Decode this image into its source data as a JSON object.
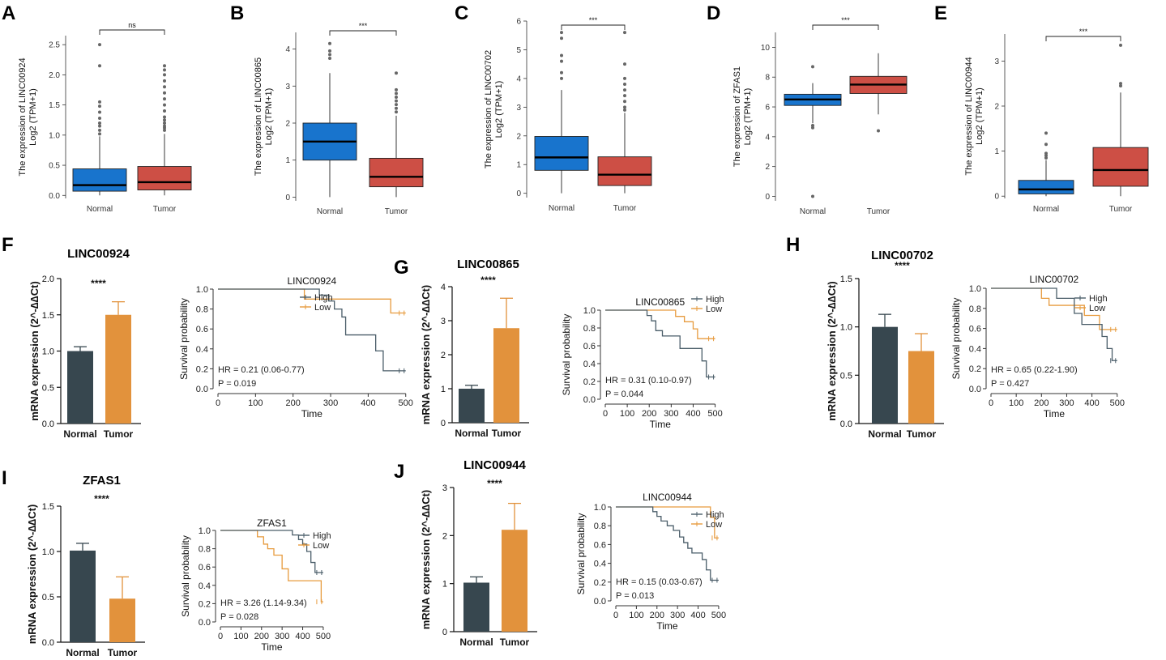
{
  "colors": {
    "box_normal": "#1874cd",
    "box_tumor": "#cd4f45",
    "bar_normal": "#37474f",
    "bar_tumor": "#e2923c",
    "km_high": "#4a5d69",
    "km_low": "#e79b3e"
  },
  "chart_data": [
    {
      "panel": "A",
      "type": "boxplot",
      "gene": "LINC00924",
      "ylabel_top": "The expression of LINC00924",
      "ylabel_bottom": "Log2 (TPM+1)",
      "categories": [
        "Normal",
        "Tumor"
      ],
      "yticks": [
        "0.0",
        "0.5",
        "1.0",
        "1.5",
        "2.0",
        "2.5"
      ],
      "ylim": [
        -0.05,
        2.65
      ],
      "significance": "ns",
      "boxes": [
        {
          "q1": 0.07,
          "median": 0.17,
          "q3": 0.44,
          "whisker_low": 0.0,
          "whisker_high": 0.98,
          "outliers": [
            1.02,
            1.08,
            1.15,
            1.2,
            1.28,
            1.38,
            1.48,
            1.55,
            2.15,
            2.5
          ]
        },
        {
          "q1": 0.09,
          "median": 0.22,
          "q3": 0.48,
          "whisker_low": 0.0,
          "whisker_high": 1.02,
          "outliers": [
            1.08,
            1.12,
            1.15,
            1.2,
            1.25,
            1.3,
            1.4,
            1.5,
            1.6,
            1.7,
            1.8,
            1.9,
            2.0,
            2.08,
            2.15
          ]
        }
      ]
    },
    {
      "panel": "B",
      "type": "boxplot",
      "gene": "LINC00865",
      "ylabel_top": "The expression of LINC00865",
      "ylabel_bottom": "Log2 (TPM+1)",
      "categories": [
        "Normal",
        "Tumor"
      ],
      "yticks": [
        "0",
        "1",
        "2",
        "3",
        "4"
      ],
      "ylim": [
        -0.1,
        4.45
      ],
      "significance": "***",
      "boxes": [
        {
          "q1": 1.0,
          "median": 1.5,
          "q3": 2.0,
          "whisker_low": 0.0,
          "whisker_high": 3.35,
          "outliers": [
            3.75,
            3.85,
            3.95,
            4.15
          ]
        },
        {
          "q1": 0.28,
          "median": 0.55,
          "q3": 1.05,
          "whisker_low": 0.0,
          "whisker_high": 2.2,
          "outliers": [
            2.3,
            2.4,
            2.5,
            2.6,
            2.7,
            2.8,
            2.9,
            3.35
          ]
        }
      ]
    },
    {
      "panel": "C",
      "type": "boxplot",
      "gene": "LINC00702",
      "ylabel_top": "The expression of LINC00702",
      "ylabel_bottom": "Log2 (TPM+1)",
      "categories": [
        "Normal",
        "Tumor"
      ],
      "yticks": [
        "0",
        "1",
        "2",
        "3",
        "4",
        "5",
        "6"
      ],
      "ylim": [
        -0.15,
        6.0
      ],
      "significance": "***",
      "boxes": [
        {
          "q1": 0.8,
          "median": 1.25,
          "q3": 1.98,
          "whisker_low": 0.0,
          "whisker_high": 3.6,
          "outliers": [
            4.0,
            4.2,
            4.6,
            4.8,
            5.4,
            5.6
          ]
        },
        {
          "q1": 0.27,
          "median": 0.65,
          "q3": 1.27,
          "whisker_low": 0.0,
          "whisker_high": 2.8,
          "outliers": [
            2.9,
            3.0,
            3.2,
            3.4,
            3.6,
            3.8,
            4.0,
            4.5,
            5.6
          ]
        }
      ]
    },
    {
      "panel": "D",
      "type": "boxplot",
      "gene": "ZFAS1",
      "ylabel_top": "The expression of ZFAS1",
      "ylabel_bottom": "Log2 (TPM+1)",
      "categories": [
        "Normal",
        "Tumor"
      ],
      "yticks": [
        "0",
        "2",
        "4",
        "6",
        "8",
        "10"
      ],
      "ylim": [
        -0.3,
        11.0
      ],
      "significance": "***",
      "boxes": [
        {
          "q1": 6.1,
          "median": 6.5,
          "q3": 6.85,
          "whisker_low": 4.9,
          "whisker_high": 7.6,
          "outliers": [
            0.0,
            4.6,
            4.75,
            8.7
          ]
        },
        {
          "q1": 6.9,
          "median": 7.5,
          "q3": 8.05,
          "whisker_low": 5.5,
          "whisker_high": 9.6,
          "outliers": [
            4.4
          ]
        }
      ]
    },
    {
      "panel": "E",
      "type": "boxplot",
      "gene": "LINC00944",
      "ylabel_top": "The expression of LINC00944",
      "ylabel_bottom": "Log2 (TPM+1)",
      "categories": [
        "Normal",
        "Tumor"
      ],
      "yticks": [
        "0",
        "1",
        "2",
        "3"
      ],
      "ylim": [
        -0.05,
        3.6
      ],
      "significance": "***",
      "boxes": [
        {
          "q1": 0.05,
          "median": 0.15,
          "q3": 0.35,
          "whisker_low": 0.0,
          "whisker_high": 0.8,
          "outliers": [
            0.85,
            0.9,
            0.95,
            1.15,
            1.4
          ]
        },
        {
          "q1": 0.22,
          "median": 0.58,
          "q3": 1.08,
          "whisker_low": 0.0,
          "whisker_high": 2.3,
          "outliers": [
            2.45,
            2.5,
            3.35
          ]
        }
      ]
    },
    {
      "panel": "F",
      "type": "bar",
      "title": "LINC00924",
      "ylabel": "mRNA expression (2^-∆∆Ct)",
      "categories": [
        "Normal",
        "Tumor"
      ],
      "values": [
        1.0,
        1.5
      ],
      "errors": [
        0.06,
        0.18
      ],
      "yticks": [
        "0.0",
        "0.5",
        "1.0",
        "1.5",
        "2.0"
      ],
      "ylim": [
        0,
        2.0
      ],
      "significance": "****"
    },
    {
      "panel": "G",
      "type": "bar",
      "title": "LINC00865",
      "ylabel": "mRNA expression (2^-∆∆Ct)",
      "categories": [
        "Normal",
        "Tumor"
      ],
      "values": [
        1.0,
        2.78
      ],
      "errors": [
        0.1,
        0.88
      ],
      "yticks": [
        "0",
        "1",
        "2",
        "3",
        "4"
      ],
      "ylim": [
        0,
        4.0
      ],
      "significance": "****"
    },
    {
      "panel": "H",
      "type": "bar",
      "title": "LINC00702",
      "ylabel": "mRNA expression (2^-∆∆Ct)",
      "categories": [
        "Normal",
        "Tumor"
      ],
      "values": [
        1.0,
        0.75
      ],
      "errors": [
        0.13,
        0.18
      ],
      "yticks": [
        "0.0",
        "0.5",
        "1.0",
        "1.5"
      ],
      "ylim": [
        0,
        1.5
      ],
      "significance": "****"
    },
    {
      "panel": "I",
      "type": "bar",
      "title": "ZFAS1",
      "ylabel": "mRNA expression (2^-∆∆Ct)",
      "categories": [
        "Normal",
        "Tumor"
      ],
      "values": [
        1.01,
        0.48
      ],
      "errors": [
        0.08,
        0.24
      ],
      "yticks": [
        "0.0",
        "0.5",
        "1.0",
        "1.5"
      ],
      "ylim": [
        0,
        1.5
      ],
      "significance": "****"
    },
    {
      "panel": "J",
      "type": "bar",
      "title": "LINC00944",
      "ylabel": "mRNA expression (2^-∆∆Ct)",
      "categories": [
        "Normal",
        "Tumor"
      ],
      "values": [
        1.02,
        2.12
      ],
      "errors": [
        0.12,
        0.55
      ],
      "yticks": [
        "0",
        "1",
        "2",
        "3"
      ],
      "ylim": [
        0,
        3.0
      ],
      "significance": "****"
    },
    {
      "panel": "F",
      "type": "line",
      "subtype": "kaplan-meier",
      "title": "LINC00924",
      "xlabel": "Time",
      "ylabel": "Survival probability",
      "xticks": [
        "0",
        "100",
        "200",
        "300",
        "400",
        "500"
      ],
      "yticks": [
        "0.0",
        "0.2",
        "0.4",
        "0.6",
        "0.8",
        "1.0"
      ],
      "xlim": [
        0,
        520
      ],
      "ylim": [
        0,
        1.0
      ],
      "hr_text": "HR = 0.21 (0.06-0.77)",
      "p_text": "P = 0.019",
      "legend": [
        "High",
        "Low"
      ],
      "series": [
        {
          "name": "High",
          "x": [
            0,
            215,
            270,
            295,
            310,
            330,
            340,
            400,
            420,
            440,
            500
          ],
          "y": [
            1.0,
            1.0,
            0.94,
            0.88,
            0.8,
            0.72,
            0.54,
            0.54,
            0.38,
            0.18,
            0.18
          ]
        },
        {
          "name": "Low",
          "x": [
            0,
            180,
            230,
            440,
            460,
            500
          ],
          "y": [
            1.0,
            1.0,
            0.9,
            0.9,
            0.76,
            0.76
          ]
        }
      ]
    },
    {
      "panel": "G",
      "type": "line",
      "subtype": "kaplan-meier",
      "title": "LINC00865",
      "xlabel": "Time",
      "ylabel": "Survival probability",
      "xticks": [
        "0",
        "100",
        "200",
        "300",
        "400",
        "500"
      ],
      "yticks": [
        "0.0",
        "0.2",
        "0.4",
        "0.6",
        "0.8",
        "1.0"
      ],
      "xlim": [
        0,
        520
      ],
      "ylim": [
        0,
        1.0
      ],
      "hr_text": "HR = 0.31 (0.10-0.97)",
      "p_text": "P = 0.044",
      "legend": [
        "High",
        "Low"
      ],
      "series": [
        {
          "name": "High",
          "x": [
            0,
            170,
            190,
            210,
            230,
            260,
            320,
            340,
            420,
            440,
            460,
            500
          ],
          "y": [
            1.0,
            1.0,
            0.94,
            0.88,
            0.77,
            0.71,
            0.71,
            0.57,
            0.57,
            0.43,
            0.25,
            0.25
          ]
        },
        {
          "name": "Low",
          "x": [
            0,
            260,
            320,
            340,
            360,
            400,
            420,
            500
          ],
          "y": [
            1.0,
            1.0,
            0.93,
            0.93,
            0.87,
            0.79,
            0.68,
            0.68
          ]
        }
      ]
    },
    {
      "panel": "H",
      "type": "line",
      "subtype": "kaplan-meier",
      "title": "LINC00702",
      "xlabel": "Time",
      "ylabel": "Survival probability",
      "xticks": [
        "0",
        "100",
        "200",
        "300",
        "400",
        "500"
      ],
      "yticks": [
        "0.0",
        "0.2",
        "0.4",
        "0.6",
        "0.8",
        "1.0"
      ],
      "xlim": [
        0,
        520
      ],
      "ylim": [
        0,
        1.0
      ],
      "hr_text": "HR = 0.65 (0.22-1.90)",
      "p_text": "P = 0.427",
      "legend": [
        "High",
        "Low"
      ],
      "series": [
        {
          "name": "High",
          "x": [
            0,
            230,
            260,
            330,
            360,
            420,
            440,
            460,
            480,
            500
          ],
          "y": [
            1.0,
            1.0,
            0.9,
            0.75,
            0.64,
            0.64,
            0.52,
            0.4,
            0.28,
            0.28
          ]
        },
        {
          "name": "Low",
          "x": [
            0,
            160,
            200,
            230,
            370,
            430,
            500
          ],
          "y": [
            1.0,
            1.0,
            0.9,
            0.83,
            0.73,
            0.59,
            0.59
          ]
        }
      ]
    },
    {
      "panel": "I",
      "type": "line",
      "subtype": "kaplan-meier",
      "title": "ZFAS1",
      "xlabel": "Time",
      "ylabel": "Survival probability",
      "xticks": [
        "0",
        "100",
        "200",
        "300",
        "400",
        "500"
      ],
      "yticks": [
        "0.0",
        "0.2",
        "0.4",
        "0.6",
        "0.8",
        "1.0"
      ],
      "xlim": [
        0,
        520
      ],
      "ylim": [
        0,
        1.0
      ],
      "hr_text": "HR = 3.26 (1.14-9.34)",
      "p_text": "P = 0.028",
      "legend": [
        "High",
        "Low"
      ],
      "series": [
        {
          "name": "High",
          "x": [
            0,
            320,
            350,
            380,
            400,
            420,
            440,
            460,
            500
          ],
          "y": [
            1.0,
            1.0,
            0.95,
            0.9,
            0.85,
            0.77,
            0.65,
            0.54,
            0.54
          ]
        },
        {
          "name": "Low",
          "x": [
            0,
            160,
            180,
            210,
            230,
            260,
            300,
            330,
            460,
            490,
            500
          ],
          "y": [
            1.0,
            1.0,
            0.93,
            0.85,
            0.8,
            0.73,
            0.58,
            0.45,
            0.45,
            0.22,
            0.22
          ]
        }
      ]
    },
    {
      "panel": "J",
      "type": "line",
      "subtype": "kaplan-meier",
      "title": "LINC00944",
      "xlabel": "Time",
      "ylabel": "Survival probability",
      "xticks": [
        "0",
        "100",
        "200",
        "300",
        "400",
        "500"
      ],
      "yticks": [
        "0.0",
        "0.2",
        "0.4",
        "0.6",
        "0.8",
        "1.0"
      ],
      "xlim": [
        0,
        520
      ],
      "ylim": [
        0,
        1.0
      ],
      "hr_text": "HR = 0.15 (0.03-0.67)",
      "p_text": "P = 0.013",
      "legend": [
        "High",
        "Low"
      ],
      "series": [
        {
          "name": "High",
          "x": [
            0,
            160,
            180,
            200,
            220,
            250,
            280,
            310,
            330,
            350,
            370,
            420,
            440,
            460,
            500
          ],
          "y": [
            1.0,
            1.0,
            0.95,
            0.9,
            0.85,
            0.8,
            0.75,
            0.68,
            0.62,
            0.56,
            0.51,
            0.44,
            0.33,
            0.22,
            0.22
          ]
        },
        {
          "name": "Low",
          "x": [
            0,
            410,
            460,
            480,
            500
          ],
          "y": [
            1.0,
            1.0,
            0.89,
            0.67,
            0.67
          ]
        }
      ]
    }
  ]
}
